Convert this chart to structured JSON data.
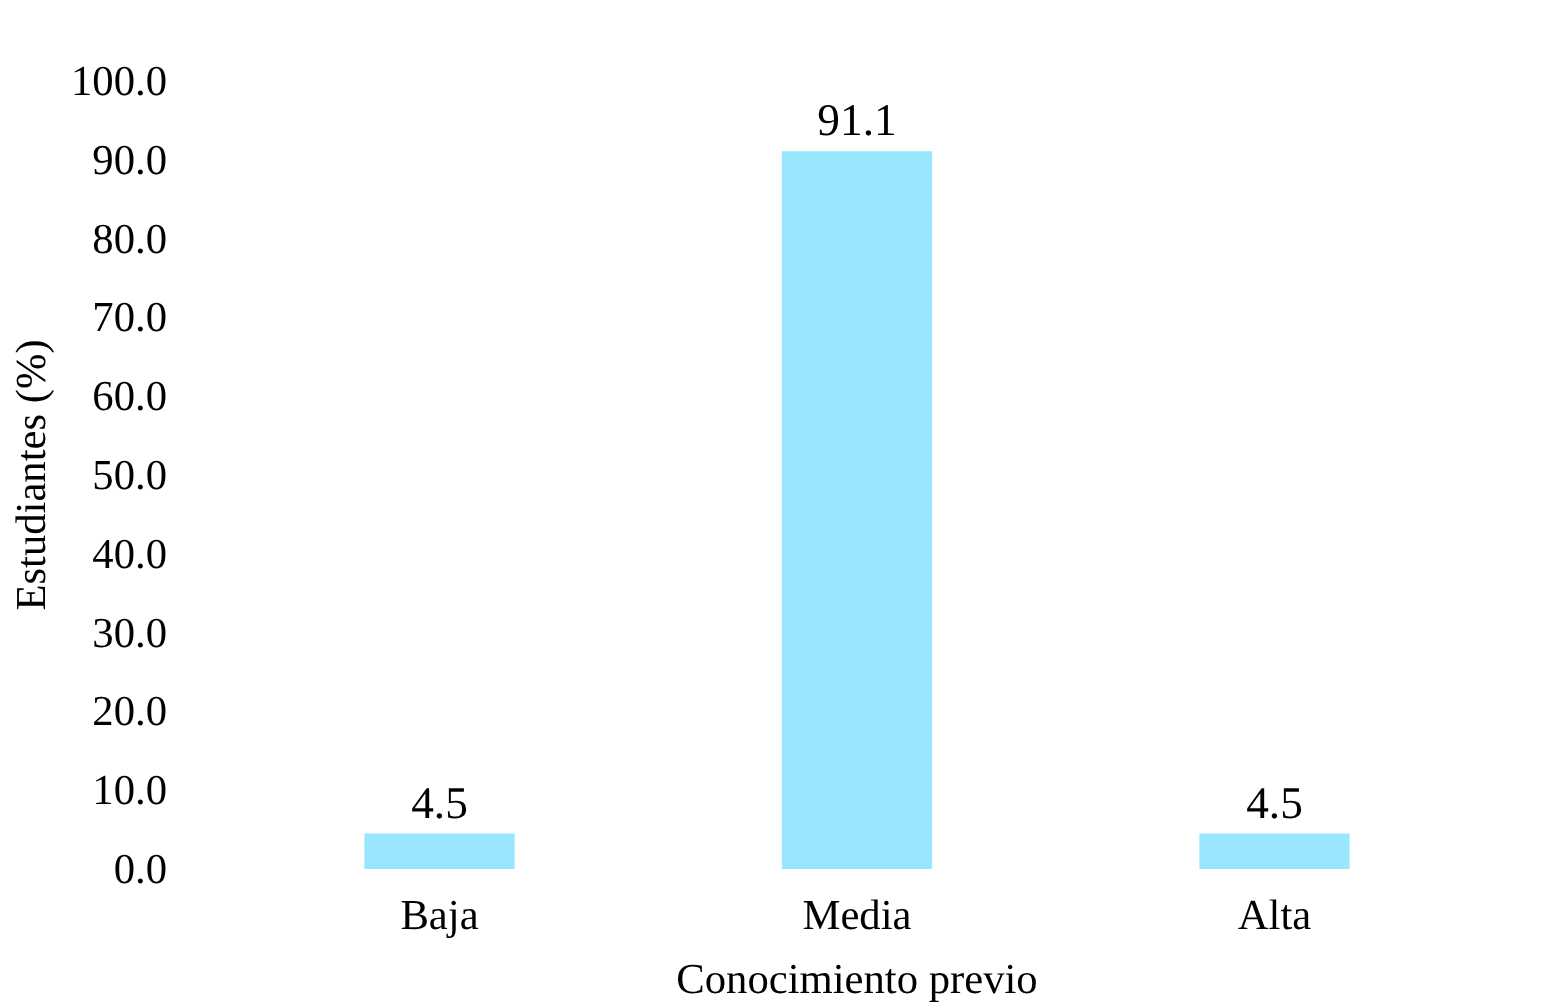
{
  "chart_data": {
    "type": "bar",
    "xlabel": "Conocimiento previo",
    "ylabel": "Estudiantes (%)",
    "categories": [
      "Baja",
      "Media",
      "Alta"
    ],
    "values": [
      4.5,
      91.1,
      4.5
    ],
    "color": "#99e6ff",
    "ylim": [
      0,
      100
    ],
    "yticks": [
      {
        "value": 0,
        "label": "0.0"
      },
      {
        "value": 10,
        "label": "10.0"
      },
      {
        "value": 20,
        "label": "20.0"
      },
      {
        "value": 30,
        "label": "30.0"
      },
      {
        "value": 40,
        "label": "40.0"
      },
      {
        "value": 50,
        "label": "50.0"
      },
      {
        "value": 60,
        "label": "60.0"
      },
      {
        "value": 70,
        "label": "70.0"
      },
      {
        "value": 80,
        "label": "80.0"
      },
      {
        "value": 90,
        "label": "90.0"
      },
      {
        "value": 100,
        "label": "100.0"
      }
    ],
    "data_labels": true,
    "grid": false
  }
}
